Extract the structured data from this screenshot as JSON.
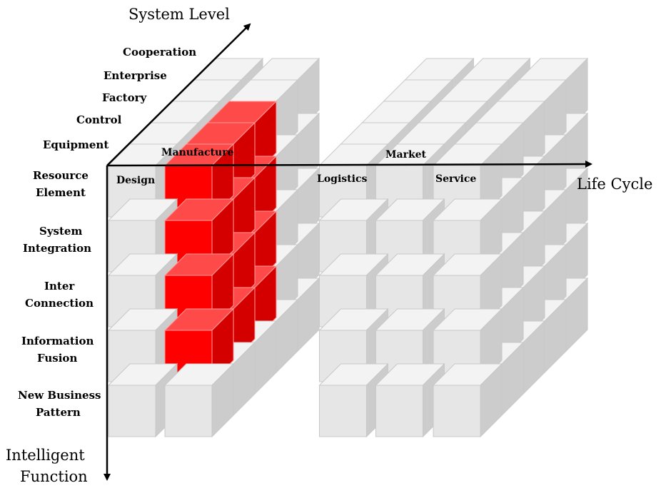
{
  "axes": {
    "system_level": "System Level",
    "life_cycle": "Life Cycle",
    "intelligent_function": [
      "Intelligent",
      "Function"
    ]
  },
  "system_levels": [
    "Equipment",
    "Control",
    "Factory",
    "Enterprise",
    "Cooperation"
  ],
  "life_cycle_stages": [
    "Design",
    "Manufacture",
    "Logistics",
    "Market",
    "Service"
  ],
  "intelligent_functions": [
    [
      "Resource",
      "Element"
    ],
    [
      "System",
      "Integration"
    ],
    [
      "Inter",
      "Connection"
    ],
    [
      "Information",
      "Fusion"
    ],
    [
      "New Business",
      "Pattern"
    ]
  ],
  "highlight": {
    "stage": "Manufacture",
    "system_levels": [
      "Equipment",
      "Control",
      "Factory"
    ],
    "functions": [
      "Resource Element",
      "System Integration",
      "Inter Connection",
      "Information Fusion"
    ]
  },
  "colors": {
    "cube_front": "#e6e6e6",
    "cube_top": "#f3f3f3",
    "cube_side": "#cccccc",
    "cube_edge": "#c8c8c8",
    "highlight_front": "#ff0000",
    "highlight_top": "#ff4a4a",
    "highlight_side": "#d40000",
    "highlight_edge": "#ff9a9a",
    "axis": "#000000"
  }
}
